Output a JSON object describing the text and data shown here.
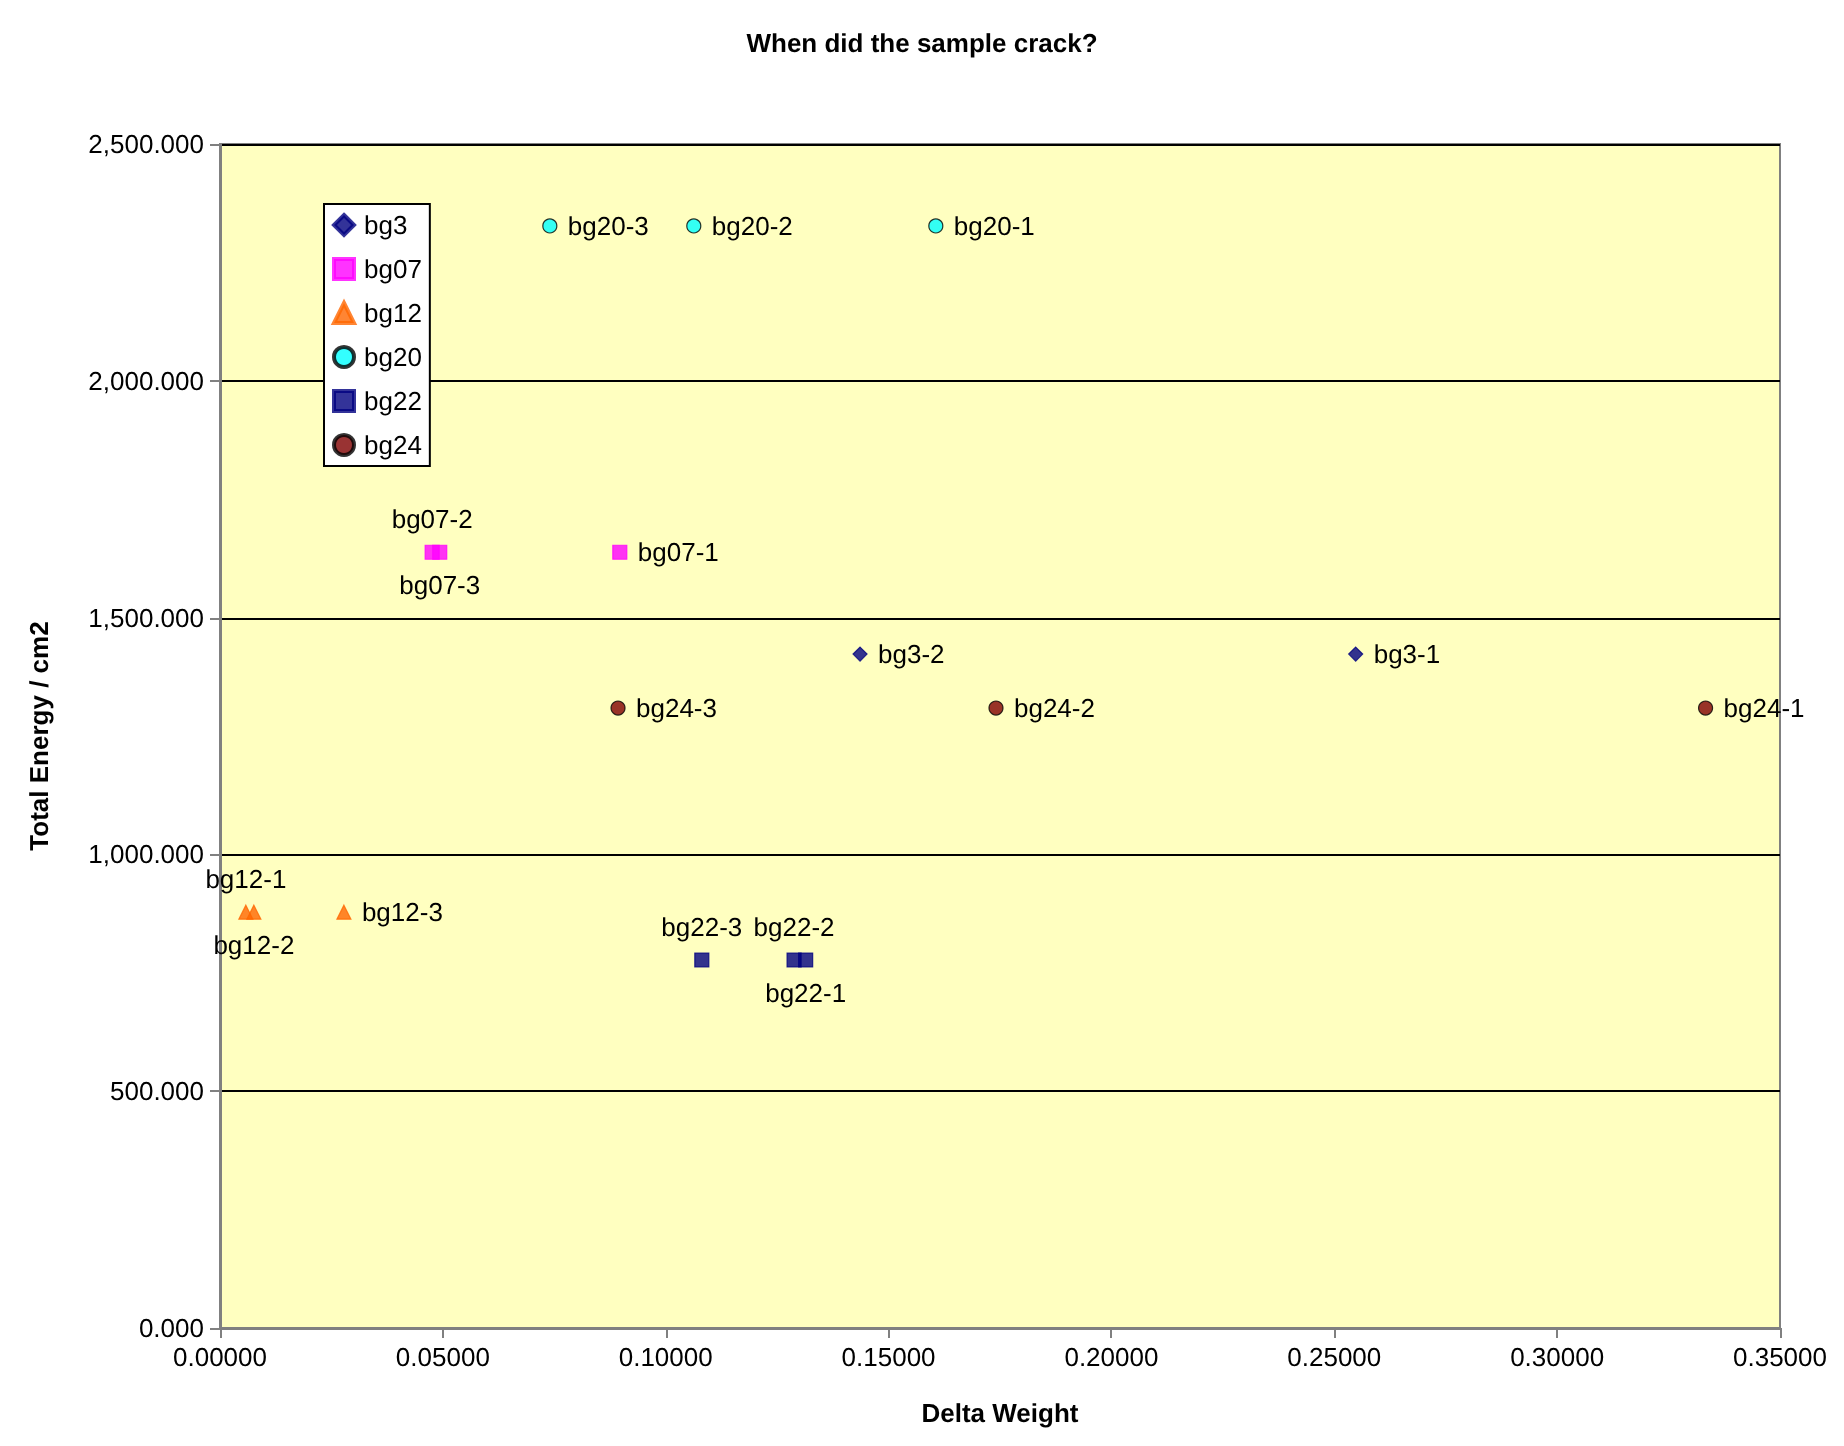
{
  "chart_data": {
    "type": "scatter",
    "title": "When did the sample crack?",
    "xlabel": "Delta Weight",
    "ylabel": "Total Energy / cm2",
    "xlim": [
      0,
      0.35
    ],
    "xticks": [
      {
        "value": 0,
        "label": "0.00000"
      },
      {
        "value": 0.05,
        "label": "0.05000"
      },
      {
        "value": 0.1,
        "label": "0.10000"
      },
      {
        "value": 0.15,
        "label": "0.15000"
      },
      {
        "value": 0.2,
        "label": "0.20000"
      },
      {
        "value": 0.25,
        "label": "0.25000"
      },
      {
        "value": 0.3,
        "label": "0.30000"
      },
      {
        "value": 0.35,
        "label": "0.35000"
      }
    ],
    "ylim": [
      0,
      2500
    ],
    "yticks": [
      {
        "value": 0,
        "label": "0.000"
      },
      {
        "value": 500,
        "label": "500.000"
      },
      {
        "value": 1000,
        "label": "1,000.000"
      },
      {
        "value": 1500,
        "label": "1,500.000"
      },
      {
        "value": 2000,
        "label": "2,000.000"
      },
      {
        "value": 2500,
        "label": "2,500.000"
      }
    ],
    "grid": "y",
    "legend": "top left",
    "series": [
      {
        "name": "bg3",
        "color": "#000080",
        "marker": "diamond",
        "x": [
          0.2548,
          0.1436
        ],
        "values": [
          1423,
          1423
        ]
      },
      {
        "name": "bg07",
        "color": "#ff00ff",
        "marker": "square",
        "x": [
          0.0897,
          0.0476,
          0.0493
        ],
        "values": [
          1638,
          1638,
          1638
        ]
      },
      {
        "name": "bg12",
        "color": "#ff6600",
        "marker": "triangle",
        "x": [
          0.0058,
          0.0076,
          0.0278
        ],
        "values": [
          878,
          878,
          878
        ]
      },
      {
        "name": "bg20",
        "color": "#00ffff",
        "marker": "circle",
        "x": [
          0.1606,
          0.1063,
          0.074
        ],
        "values": [
          2327,
          2327,
          2327
        ]
      },
      {
        "name": "bg22",
        "color": "#000080",
        "marker": "square",
        "x": [
          0.1314,
          0.1288,
          0.1081
        ],
        "values": [
          777,
          777,
          777
        ]
      },
      {
        "name": "bg24",
        "color": "#800000",
        "marker": "circle",
        "x": [
          0.3333,
          0.1741,
          0.0893
        ],
        "values": [
          1309,
          1309,
          1309
        ]
      }
    ],
    "annotations": [
      {
        "text": "bg3-1",
        "x": 0.2548,
        "y": 1423
      },
      {
        "text": "bg3-2",
        "x": 0.1436,
        "y": 1423
      },
      {
        "text": "bg07-1",
        "x": 0.0897,
        "y": 1638
      },
      {
        "text": "bg07-2",
        "x": 0.0476,
        "y": 1638
      },
      {
        "text": "bg07-3",
        "x": 0.0493,
        "y": 1638
      },
      {
        "text": "bg12-1",
        "x": 0.0058,
        "y": 878
      },
      {
        "text": "bg12-2",
        "x": 0.0076,
        "y": 878
      },
      {
        "text": "bg12-3",
        "x": 0.0278,
        "y": 878
      },
      {
        "text": "bg20-1",
        "x": 0.1606,
        "y": 2327
      },
      {
        "text": "bg20-2",
        "x": 0.1063,
        "y": 2327
      },
      {
        "text": "bg20-3",
        "x": 0.074,
        "y": 2327
      },
      {
        "text": "bg22-1",
        "x": 0.1314,
        "y": 777
      },
      {
        "text": "bg22-2",
        "x": 0.1288,
        "y": 777
      },
      {
        "text": "bg22-3",
        "x": 0.1081,
        "y": 777
      },
      {
        "text": "bg24-1",
        "x": 0.3333,
        "y": 1309
      },
      {
        "text": "bg24-2",
        "x": 0.1741,
        "y": 1309
      },
      {
        "text": "bg24-3",
        "x": 0.0893,
        "y": 1309
      }
    ]
  }
}
